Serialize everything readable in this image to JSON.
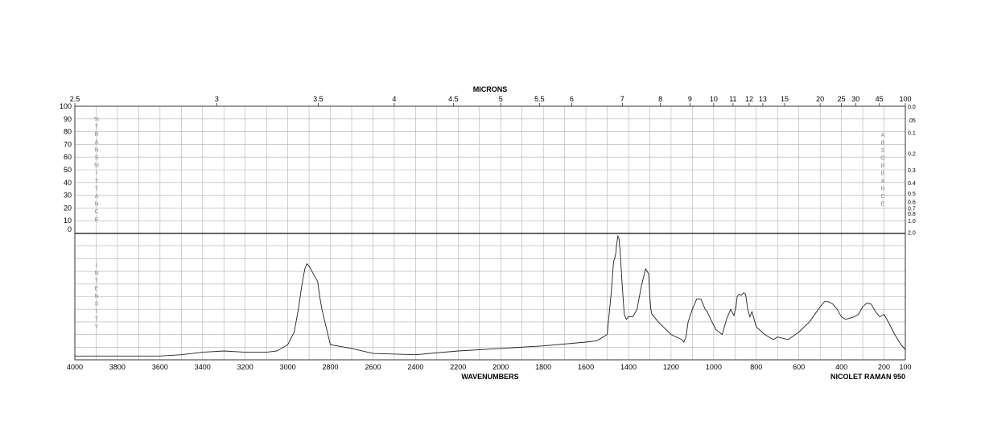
{
  "chart_data": {
    "type": "line",
    "title": "",
    "xlabel": "WAVENUMBERS",
    "top_axis_label": "MICRONS",
    "instrument": "NICOLET RAMAN 950",
    "xlim": [
      4000,
      100
    ],
    "x_ticks": [
      "4000",
      "3800",
      "3600",
      "3400",
      "3200",
      "3000",
      "2800",
      "2600",
      "2400",
      "2200",
      "2000",
      "1800",
      "1600",
      "1400",
      "1200",
      "1000",
      "800",
      "600",
      "400",
      "200",
      "100"
    ],
    "micron_ticks": [
      "2.5",
      "3",
      "3.5",
      "4",
      "4.5",
      "5",
      "5.5",
      "6",
      "7",
      "8",
      "9",
      "10",
      "11",
      "12",
      "13",
      "15",
      "20",
      "25",
      "30",
      "45",
      "100"
    ],
    "transmittance_ticks": [
      "100",
      "90",
      "80",
      "70",
      "60",
      "50",
      "40",
      "30",
      "20",
      "10",
      "0"
    ],
    "absorbance_ticks": [
      "0.0",
      ".05",
      "0.1",
      "0.2",
      "0.3",
      "0.4",
      "0.5",
      "0.6",
      "0.7",
      "0.8",
      "1.0",
      "2.0"
    ],
    "left_top_vertical_label": "%TRANSMITTANCE",
    "right_vertical_label": "ABSORBANCE",
    "left_bottom_vertical_label": "INTENSITY",
    "series": [
      {
        "x": [
          4000,
          3800,
          3600,
          3500,
          3400,
          3300,
          3200,
          3100,
          3050,
          3000,
          2970,
          2950,
          2935,
          2920,
          2910,
          2900,
          2880,
          2860,
          2850,
          2840,
          2800,
          2700,
          2600,
          2400,
          2200,
          2000,
          1800,
          1600,
          1550,
          1500,
          1480,
          1470,
          1465,
          1460,
          1455,
          1450,
          1445,
          1440,
          1430,
          1420,
          1410,
          1400,
          1380,
          1360,
          1340,
          1320,
          1305,
          1300,
          1295,
          1290,
          1280,
          1260,
          1200,
          1150,
          1140,
          1130,
          1120,
          1100,
          1080,
          1060,
          1040,
          1030,
          1020,
          990,
          960,
          940,
          920,
          905,
          895,
          890,
          880,
          870,
          860,
          850,
          840,
          830,
          820,
          800,
          760,
          720,
          700,
          650,
          600,
          550,
          500,
          480,
          460,
          440,
          420,
          400,
          380,
          360,
          340,
          320,
          300,
          280,
          260,
          240,
          220,
          210,
          200,
          180,
          150,
          120,
          100
        ],
        "y": [
          3,
          3,
          3,
          4,
          6,
          7,
          6,
          6,
          7,
          12,
          22,
          40,
          58,
          72,
          76,
          74,
          68,
          62,
          50,
          40,
          12,
          9,
          5,
          4,
          7,
          9,
          11,
          14,
          15,
          20,
          55,
          78,
          80,
          84,
          92,
          98,
          96,
          88,
          60,
          36,
          32,
          34,
          34,
          40,
          58,
          72,
          68,
          50,
          40,
          36,
          34,
          30,
          20,
          16,
          14,
          18,
          30,
          40,
          48,
          48,
          40,
          38,
          34,
          24,
          20,
          32,
          40,
          35,
          42,
          50,
          52,
          51,
          53,
          52,
          40,
          34,
          38,
          26,
          20,
          16,
          18,
          16,
          22,
          30,
          42,
          46,
          46,
          44,
          40,
          34,
          32,
          33,
          34,
          36,
          42,
          45,
          44,
          38,
          34,
          35,
          36,
          30,
          20,
          12,
          8
        ]
      }
    ]
  }
}
